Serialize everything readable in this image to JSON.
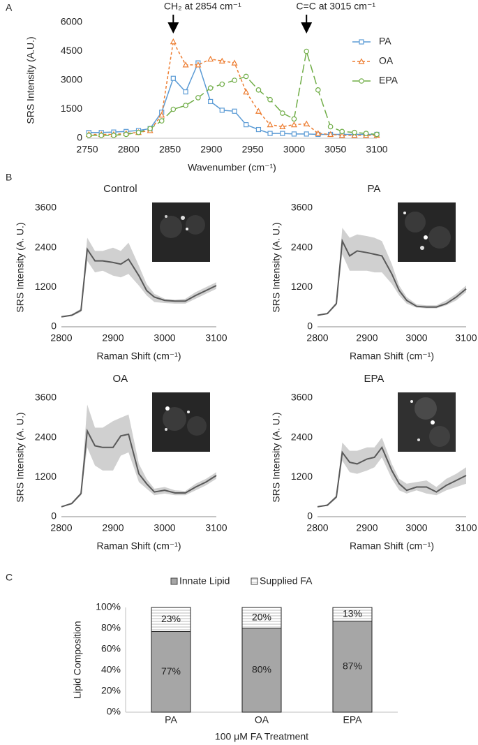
{
  "chart_data": [
    {
      "type": "line",
      "panel": "A",
      "xlabel": "Wavenumber (cm⁻¹)",
      "ylabel": "SRS Intensity (A.U.)",
      "annotations": [
        {
          "text": "CH₂ at 2854 cm⁻¹",
          "x": 2854
        },
        {
          "text": "C=C at 3015 cm⁻¹",
          "x": 3015
        }
      ],
      "x": [
        2752,
        2767,
        2782,
        2797,
        2812,
        2826,
        2840,
        2854,
        2869,
        2884,
        2899,
        2913,
        2928,
        2942,
        2957,
        2971,
        2986,
        3000,
        3015,
        3029,
        3044,
        3058,
        3073,
        3087,
        3100
      ],
      "series": [
        {
          "name": "PA",
          "color": "#5b9bd5",
          "marker": "square",
          "dash": "none",
          "values": [
            300,
            300,
            320,
            350,
            400,
            500,
            1350,
            3100,
            2400,
            3900,
            1900,
            1450,
            1400,
            700,
            450,
            250,
            250,
            220,
            220,
            200,
            200,
            200,
            200,
            200,
            200
          ]
        },
        {
          "name": "OA",
          "color": "#ed7d31",
          "marker": "triangle",
          "dash": "4 3",
          "values": [
            200,
            200,
            200,
            250,
            300,
            400,
            1200,
            5000,
            3800,
            3800,
            4100,
            4000,
            3900,
            2400,
            1400,
            700,
            600,
            700,
            750,
            250,
            200,
            150,
            150,
            150,
            150
          ]
        },
        {
          "name": "EPA",
          "color": "#70ad47",
          "marker": "circle",
          "dash": "12 5",
          "values": [
            150,
            150,
            150,
            200,
            300,
            500,
            900,
            1500,
            1700,
            2100,
            2600,
            2800,
            3000,
            3200,
            2500,
            2000,
            1300,
            1000,
            4500,
            2500,
            600,
            350,
            300,
            250,
            200
          ]
        }
      ],
      "xlim": [
        2750,
        3100
      ],
      "xticks": [
        2750,
        2800,
        2850,
        2900,
        2950,
        3000,
        3050,
        3100
      ],
      "ylim": [
        0,
        6000
      ],
      "yticks": [
        0,
        1500,
        3000,
        4500,
        6000
      ],
      "grid": false,
      "legend": "right"
    },
    {
      "type": "line",
      "panel": "B",
      "title": "Control",
      "xlabel": "Raman Shift (cm⁻¹)",
      "ylabel": "SRS Intensity (A. U.)",
      "x": [
        2800,
        2820,
        2838,
        2850,
        2865,
        2880,
        2900,
        2915,
        2930,
        2950,
        2965,
        2980,
        3000,
        3020,
        3040,
        3060,
        3080,
        3100
      ],
      "values": [
        300,
        350,
        500,
        2350,
        2000,
        2000,
        1950,
        1900,
        2050,
        1550,
        1100,
        900,
        800,
        780,
        780,
        950,
        1100,
        1250
      ],
      "upper": [
        300,
        380,
        550,
        2700,
        2300,
        2300,
        2400,
        2300,
        2550,
        1850,
        1300,
        1000,
        850,
        820,
        850,
        1050,
        1200,
        1350
      ],
      "lower": [
        300,
        320,
        450,
        2000,
        1650,
        1700,
        1550,
        1500,
        1600,
        1250,
        950,
        750,
        720,
        700,
        700,
        850,
        1000,
        1150
      ],
      "color": "#595959",
      "band_color": "#d0d0d0",
      "xlim": [
        2800,
        3100
      ],
      "xticks": [
        2800,
        2900,
        3000,
        3100
      ],
      "ylim": [
        0,
        3600
      ],
      "yticks": [
        0,
        1200,
        2400,
        3600
      ]
    },
    {
      "type": "line",
      "title": "PA",
      "xlabel": "Raman Shift (cm⁻¹)",
      "ylabel": "SRS Intensity (A. U.)",
      "x": [
        2800,
        2820,
        2838,
        2850,
        2865,
        2880,
        2900,
        2915,
        2930,
        2950,
        2965,
        2980,
        3000,
        3020,
        3040,
        3060,
        3080,
        3100
      ],
      "values": [
        350,
        400,
        700,
        2600,
        2150,
        2300,
        2250,
        2200,
        2150,
        1600,
        1100,
        800,
        620,
        600,
        600,
        700,
        900,
        1150
      ],
      "upper": [
        350,
        420,
        750,
        3000,
        2700,
        2800,
        2750,
        2700,
        2600,
        1900,
        1250,
        900,
        680,
        650,
        650,
        800,
        1000,
        1250
      ],
      "lower": [
        330,
        380,
        650,
        2200,
        1700,
        1700,
        1700,
        1650,
        1650,
        1300,
        950,
        700,
        580,
        560,
        560,
        650,
        800,
        1050
      ],
      "color": "#595959",
      "band_color": "#d0d0d0",
      "xlim": [
        2800,
        3100
      ],
      "xticks": [
        2800,
        2900,
        3000,
        3100
      ],
      "ylim": [
        0,
        3600
      ],
      "yticks": [
        0,
        1200,
        2400,
        3600
      ]
    },
    {
      "type": "line",
      "title": "OA",
      "xlabel": "Raman Shift (cm⁻¹)",
      "ylabel": "SRS Intensity (A. U.)",
      "x": [
        2800,
        2820,
        2838,
        2850,
        2865,
        2880,
        2900,
        2915,
        2930,
        2950,
        2965,
        2980,
        3000,
        3020,
        3040,
        3060,
        3080,
        3100
      ],
      "values": [
        300,
        400,
        700,
        2600,
        2150,
        2100,
        2100,
        2450,
        2500,
        1300,
        1000,
        750,
        800,
        720,
        720,
        900,
        1050,
        1250
      ],
      "upper": [
        300,
        430,
        750,
        3400,
        2700,
        2700,
        2900,
        3000,
        3100,
        1600,
        1150,
        850,
        900,
        800,
        780,
        1000,
        1150,
        1350
      ],
      "lower": [
        300,
        370,
        650,
        2100,
        1550,
        1400,
        1400,
        1850,
        1950,
        1050,
        850,
        650,
        700,
        650,
        650,
        800,
        950,
        1150
      ],
      "color": "#595959",
      "band_color": "#d0d0d0",
      "xlim": [
        2800,
        3100
      ],
      "xticks": [
        2800,
        2900,
        3000,
        3100
      ],
      "ylim": [
        0,
        3600
      ],
      "yticks": [
        0,
        1200,
        2400,
        3600
      ]
    },
    {
      "type": "line",
      "title": "EPA",
      "xlabel": "Raman Shift (cm⁻¹)",
      "ylabel": "SRS Intensity (A. U.)",
      "x": [
        2800,
        2820,
        2838,
        2850,
        2865,
        2880,
        2900,
        2915,
        2930,
        2950,
        2965,
        2980,
        3000,
        3020,
        3040,
        3060,
        3080,
        3100
      ],
      "values": [
        300,
        350,
        600,
        1950,
        1650,
        1600,
        1750,
        1800,
        2100,
        1400,
        1000,
        800,
        900,
        900,
        750,
        950,
        1100,
        1250
      ],
      "upper": [
        300,
        380,
        650,
        2250,
        2000,
        2000,
        2100,
        2100,
        2400,
        1600,
        1150,
        1000,
        1050,
        1100,
        900,
        1150,
        1300,
        1500
      ],
      "lower": [
        300,
        320,
        550,
        1700,
        1350,
        1300,
        1400,
        1500,
        1800,
        1150,
        800,
        700,
        800,
        700,
        650,
        800,
        900,
        1000
      ],
      "color": "#595959",
      "band_color": "#d0d0d0",
      "xlim": [
        2800,
        3100
      ],
      "xticks": [
        2800,
        2900,
        3000,
        3100
      ],
      "ylim": [
        0,
        3600
      ],
      "yticks": [
        0,
        1200,
        2400,
        3600
      ]
    },
    {
      "type": "bar",
      "panel": "C",
      "stacked": true,
      "xlabel": "100 μM FA Treatment",
      "ylabel": "Lipid Composition",
      "categories": [
        "PA",
        "OA",
        "EPA"
      ],
      "series": [
        {
          "name": "Innate Lipid",
          "color": "#a6a6a6",
          "values": [
            77,
            80,
            87
          ],
          "value_labels": [
            "77%",
            "80%",
            "87%"
          ]
        },
        {
          "name": "Supplied FA",
          "color": "#ffffff",
          "values": [
            23,
            20,
            13
          ],
          "value_labels": [
            "23%",
            "20%",
            "13%"
          ]
        }
      ],
      "ylim": [
        0,
        100
      ],
      "yticks": [
        {
          "value": 0,
          "label": "0%"
        },
        {
          "value": 20,
          "label": "20%"
        },
        {
          "value": 40,
          "label": "40%"
        },
        {
          "value": 60,
          "label": "60%"
        },
        {
          "value": 80,
          "label": "80%"
        },
        {
          "value": 100,
          "label": "100%"
        }
      ],
      "legend": "top"
    }
  ]
}
